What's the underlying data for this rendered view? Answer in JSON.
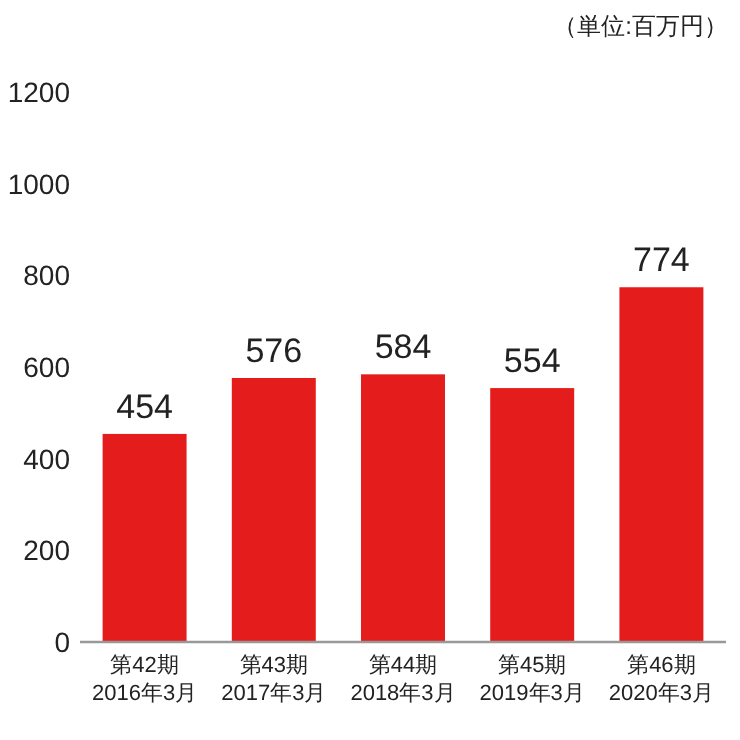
{
  "chart_data": {
    "type": "bar",
    "ylabel": "（単位:百万円）",
    "categories": [
      "第42期\n2016年3月",
      "第43期\n2017年3月",
      "第44期\n2018年3月",
      "第45期\n2019年3月",
      "第46期\n2020年3月"
    ],
    "values": [
      454,
      576,
      584,
      554,
      774
    ],
    "color": "#e51c1c",
    "ylim": [
      0,
      1200
    ],
    "yticks": [
      0,
      200,
      400,
      600,
      800,
      1000,
      1200
    ],
    "data_labels": true
  }
}
